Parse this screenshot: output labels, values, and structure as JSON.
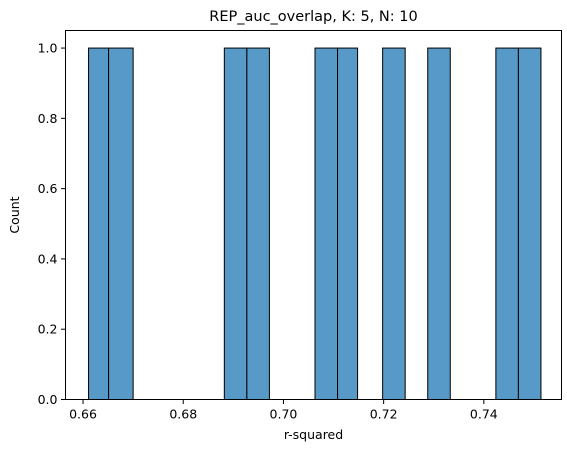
{
  "chart_data": {
    "type": "bar",
    "title": "REP_auc_overlap, K: 5, N: 10",
    "xlabel": "r-squared",
    "ylabel": "Count",
    "xlim": [
      0.6565,
      0.7555
    ],
    "ylim": [
      0,
      1.05
    ],
    "xticks": [
      0.66,
      0.68,
      0.7,
      0.72,
      0.74
    ],
    "xtick_labels": [
      "0.66",
      "0.68",
      "0.70",
      "0.72",
      "0.74"
    ],
    "yticks": [
      0.0,
      0.2,
      0.4,
      0.6,
      0.8,
      1.0
    ],
    "ytick_labels": [
      "0.0",
      "0.2",
      "0.4",
      "0.6",
      "0.8",
      "1.0"
    ],
    "bin_edges": [
      0.6611,
      0.6651,
      0.67,
      0.6882,
      0.6927,
      0.6972,
      0.7063,
      0.7108,
      0.7148,
      0.7198,
      0.7243,
      0.7288,
      0.7333,
      0.7424,
      0.7469,
      0.7514
    ],
    "bins": [
      {
        "x0": 0.6611,
        "x1": 0.6651,
        "count": 1
      },
      {
        "x0": 0.6651,
        "x1": 0.67,
        "count": 1
      },
      {
        "x0": 0.6882,
        "x1": 0.6927,
        "count": 1
      },
      {
        "x0": 0.6927,
        "x1": 0.6972,
        "count": 1
      },
      {
        "x0": 0.7063,
        "x1": 0.7108,
        "count": 1
      },
      {
        "x0": 0.7108,
        "x1": 0.7148,
        "count": 1
      },
      {
        "x0": 0.7198,
        "x1": 0.7243,
        "count": 1
      },
      {
        "x0": 0.7288,
        "x1": 0.7333,
        "count": 1
      },
      {
        "x0": 0.7424,
        "x1": 0.7469,
        "count": 1
      },
      {
        "x0": 0.7469,
        "x1": 0.7514,
        "count": 1
      }
    ],
    "bar_color": "#5799c7",
    "edge_color": "#000000",
    "grid": false
  }
}
